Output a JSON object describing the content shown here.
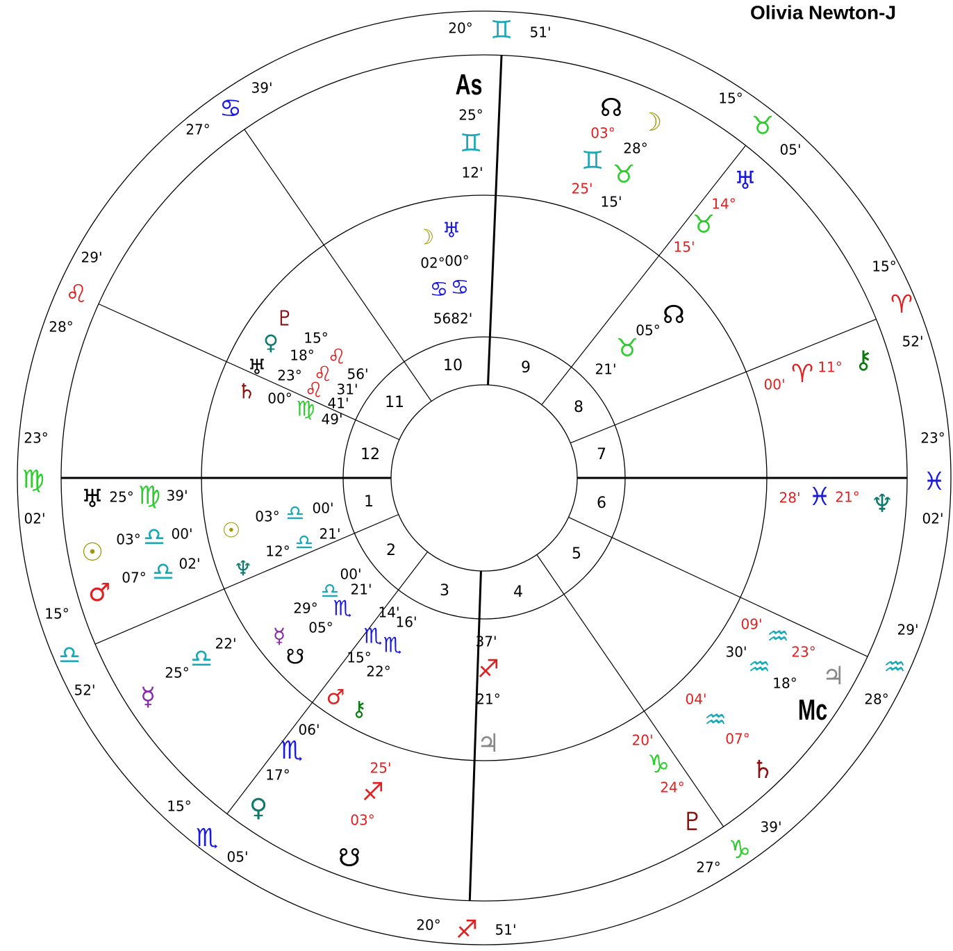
{
  "title": "Olivia Newton-J",
  "signs_ring": [
    "20°",
    "♊",
    "51'",
    "39'",
    "♋",
    "27°",
    "15°",
    "♉",
    "05'",
    "29'",
    "♌",
    "28°",
    "15°",
    "♈",
    "52'",
    "23°",
    "♍",
    "02'",
    "23°",
    "♓",
    "02'",
    "15°",
    "♎",
    "52'",
    "29'",
    "♒",
    "28°",
    "15°",
    "♏",
    "05'",
    "39'",
    "♑",
    "27°",
    "20°",
    "♐",
    "51'"
  ],
  "house_numbers": [
    "10",
    "9",
    "11",
    "8",
    "12",
    "7",
    "1",
    "6",
    "2",
    "5",
    "3",
    "4"
  ],
  "outer_planets": [
    "As",
    "25°",
    "♊",
    "12'",
    "☊",
    "☽",
    "03°",
    "28°",
    "♊",
    "♉",
    "25'",
    "15'",
    "♅",
    "14°",
    "♉",
    "15'",
    "☊",
    "05°",
    "♉",
    "21'",
    "00'",
    "♈",
    "11°",
    "⚷",
    "28'",
    "♓",
    "21°",
    "♆",
    "09'",
    "♒",
    "23°",
    "30'",
    "♒",
    "18°",
    "♃",
    "Mc",
    "04'",
    "♒",
    "07°",
    "♄",
    "20'",
    "♑",
    "24°",
    "♇",
    "37'",
    "♐",
    "21°",
    "♃",
    "25'",
    "♐",
    "03°",
    "☋",
    "06'",
    "♏",
    "17°",
    "♀",
    "☿",
    "25°",
    "♎",
    "22'",
    "♅",
    "25°",
    "♍",
    "39'",
    "☉",
    "03°",
    "♎",
    "00'",
    "♂",
    "07°",
    "♎",
    "02'"
  ],
  "inner_planets": [
    "☽",
    "♅",
    "02°",
    "00°",
    "♋",
    "♋",
    "5682'",
    "♇",
    "♀",
    "15°",
    "18°",
    "♌",
    "♅",
    "23°",
    "♌",
    "56'",
    "♌",
    "31'",
    "♄",
    "00°",
    "♍",
    "41'",
    "49'",
    "☉",
    "03°",
    "♎",
    "00'",
    "12°",
    "♎",
    "21'",
    "♆",
    "00'",
    "♎",
    "21'",
    "29°",
    "♏",
    "05°",
    "14'",
    "16'",
    "♏",
    "♏",
    "15°",
    "22°",
    "☿",
    "☋",
    "♂",
    "⚷"
  ]
}
